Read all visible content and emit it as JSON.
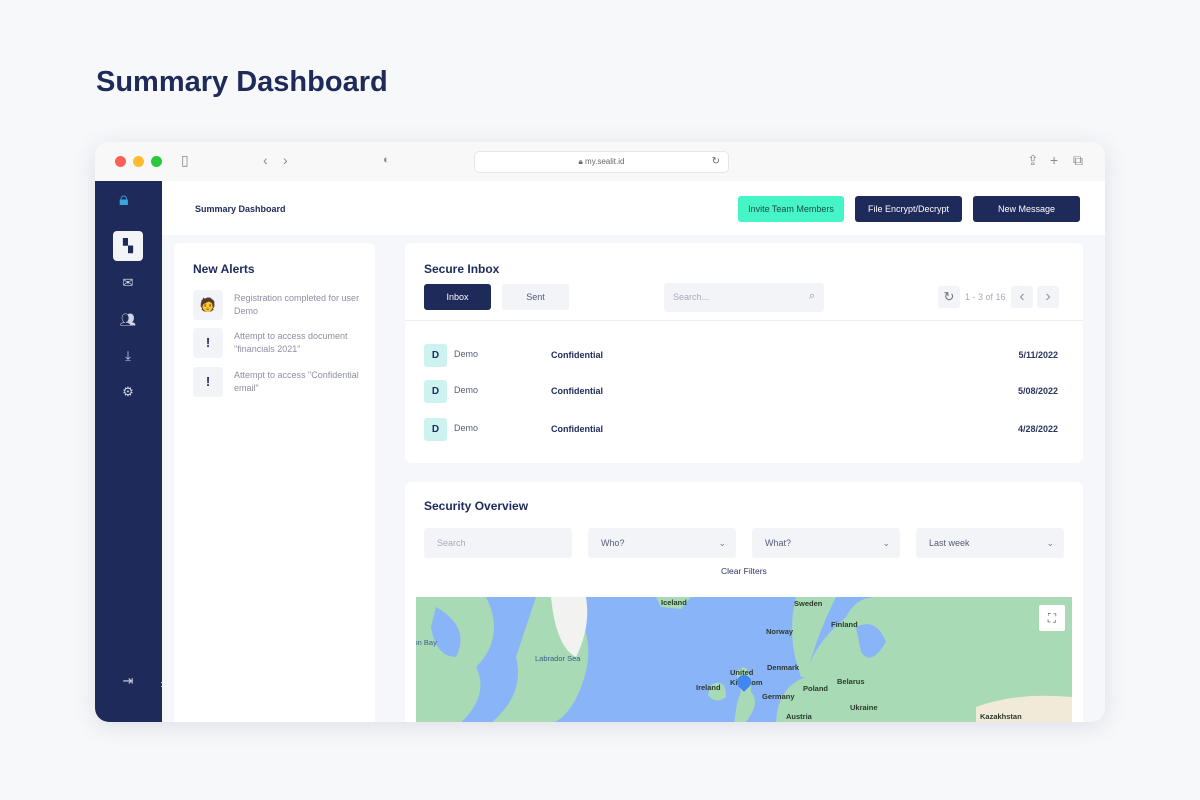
{
  "page_title": "Summary Dashboard",
  "browser": {
    "url": "my.sealit.id"
  },
  "header": {
    "breadcrumb": "Summary Dashboard",
    "invite_label": "Invite Team Members",
    "encrypt_label": "File Encrypt/Decrypt",
    "new_message_label": "New Message"
  },
  "sidebar": {
    "items": [
      "dashboard",
      "mail",
      "team",
      "download",
      "settings"
    ],
    "logout": "logout"
  },
  "alerts": {
    "title": "New Alerts",
    "items": [
      {
        "icon": "user-avatar-icon",
        "text": "Registration completed for user Demo"
      },
      {
        "icon": "exclamation-icon",
        "glyph": "!",
        "text": "Attempt to access document \"financials 2021\""
      },
      {
        "icon": "exclamation-icon",
        "glyph": "!",
        "text": "Attempt to access \"Confidential email\""
      }
    ]
  },
  "inbox": {
    "title": "Secure Inbox",
    "tabs": [
      "Inbox",
      "Sent"
    ],
    "search_placeholder": "Search...",
    "pagination": "1 - 3 of 16",
    "rows": [
      {
        "initial": "D",
        "name": "Demo",
        "subject": "Confidential",
        "date": "5/11/2022"
      },
      {
        "initial": "D",
        "name": "Demo",
        "subject": "Confidential",
        "date": "5/08/2022"
      },
      {
        "initial": "D",
        "name": "Demo",
        "subject": "Confidential",
        "date": "4/28/2022"
      }
    ]
  },
  "security": {
    "title": "Security Overview",
    "search_placeholder": "Search",
    "who": "Who?",
    "what": "What?",
    "period": "Last week",
    "clear": "Clear Filters",
    "map_labels": [
      "Iceland",
      "Sweden",
      "Finland",
      "Norway",
      "Hudson Bay",
      "Labrador Sea",
      "United Kingdom",
      "Denmark",
      "Ireland",
      "Poland",
      "Belarus",
      "Germany",
      "Ukraine",
      "Austria",
      "Kazakhstan"
    ]
  },
  "colors": {
    "navy": "#1e2a5a",
    "accent": "#45f5c8",
    "water": "#8ab4f8",
    "land": "#a8dab5"
  }
}
